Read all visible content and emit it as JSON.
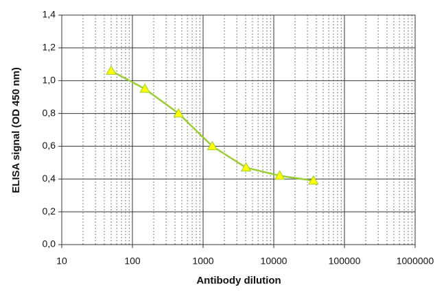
{
  "chart_data": {
    "type": "line",
    "xlabel": "Antibody dilution",
    "ylabel": "ELISA signal (OD 450 nm)",
    "x": [
      50,
      150,
      450,
      1350,
      4050,
      12150,
      36450
    ],
    "series": [
      {
        "color": "#9acd32",
        "marker_color": "#ffff00",
        "marker": "triangle",
        "values": [
          1.06,
          0.95,
          0.8,
          0.6,
          0.47,
          0.42,
          0.39
        ]
      }
    ],
    "xscale": "log",
    "xlim": [
      10,
      1000000
    ],
    "xticks": [
      10,
      100,
      1000,
      10000,
      100000,
      1000000
    ],
    "ylim": [
      0,
      1.4
    ],
    "yticks": [
      {
        "value": 0,
        "label": "0,0"
      },
      {
        "value": 0.2,
        "label": "0,2"
      },
      {
        "value": 0.4,
        "label": "0,4"
      },
      {
        "value": 0.6,
        "label": "0,6"
      },
      {
        "value": 0.8,
        "label": "0,8"
      },
      {
        "value": 1.0,
        "label": "1,0"
      },
      {
        "value": 1.2,
        "label": "1,2"
      },
      {
        "value": 1.4,
        "label": "1,4"
      }
    ],
    "grid": true,
    "minor_grid": true
  }
}
